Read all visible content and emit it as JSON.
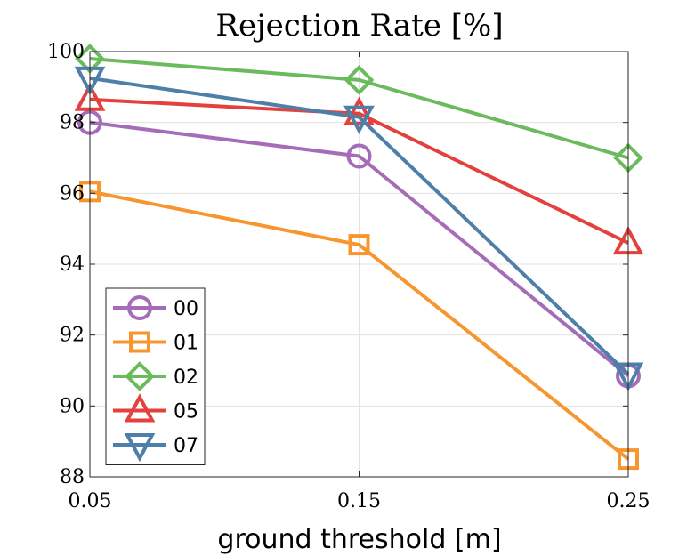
{
  "chart_data": {
    "type": "line",
    "title": "Rejection Rate [%]",
    "xlabel": "ground threshold [m]",
    "ylabel": "",
    "x": [
      0.05,
      0.15,
      0.25
    ],
    "x_tick_labels": [
      "0.05",
      "0.15",
      "0.25"
    ],
    "xlim": [
      0.05,
      0.25
    ],
    "ylim": [
      88,
      100
    ],
    "y_ticks": [
      88,
      90,
      92,
      94,
      96,
      98,
      100
    ],
    "grid": true,
    "legend_position": "bottom-left",
    "series": [
      {
        "name": "00",
        "values": [
          98.0,
          97.05,
          90.85
        ],
        "color": "#a56db8",
        "marker": "circle"
      },
      {
        "name": "01",
        "values": [
          96.05,
          94.55,
          88.5
        ],
        "color": "#f7962e",
        "marker": "square"
      },
      {
        "name": "02",
        "values": [
          99.8,
          99.2,
          97.0
        ],
        "color": "#6cba5e",
        "marker": "diamond"
      },
      {
        "name": "05",
        "values": [
          98.65,
          98.25,
          94.6
        ],
        "color": "#e3403e",
        "marker": "triangle-up"
      },
      {
        "name": "07",
        "values": [
          99.25,
          98.15,
          90.9
        ],
        "color": "#4d7fa8",
        "marker": "triangle-down"
      }
    ]
  }
}
